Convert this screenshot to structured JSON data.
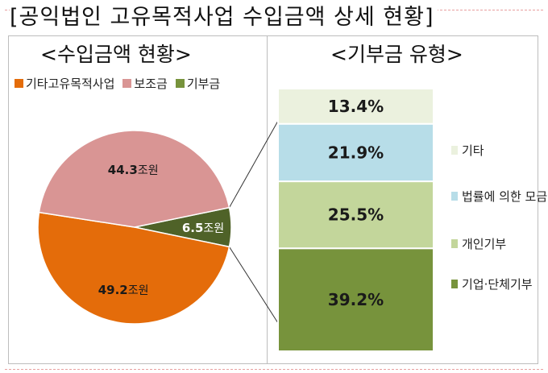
{
  "title": "[공익법인 고유목적사업 수입금액 상세 현황]",
  "chart_data": [
    {
      "type": "pie",
      "title": "<수입금액 현황>",
      "unit": "조원",
      "slices": [
        {
          "name": "기타고유목적사업",
          "value": 49.2,
          "label": "49.2",
          "color": "#e46c0a"
        },
        {
          "name": "보조금",
          "value": 44.3,
          "label": "44.3",
          "color": "#d99594"
        },
        {
          "name": "기부금",
          "value": 6.5,
          "label": "6.5",
          "color": "#4f6228"
        }
      ],
      "legend": [
        {
          "name": "기타고유목적사업",
          "color": "#e46c0a"
        },
        {
          "name": "보조금",
          "color": "#d99594"
        },
        {
          "name": "기부금",
          "color": "#77933c"
        }
      ],
      "legend_position": "top"
    },
    {
      "type": "bar",
      "stacked": true,
      "title": "<기부금 유형>",
      "unit": "%",
      "series": [
        {
          "name": "기업·단체기부",
          "value": 39.2,
          "label": "39.2%",
          "color": "#77933c"
        },
        {
          "name": "개인기부",
          "value": 25.5,
          "label": "25.5%",
          "color": "#c3d69b"
        },
        {
          "name": "법률에 의한 모금",
          "value": 21.9,
          "label": "21.9%",
          "color": "#b7dde8"
        },
        {
          "name": "기타",
          "value": 13.4,
          "label": "13.4%",
          "color": "#ebf1de"
        }
      ],
      "legend_position": "right"
    }
  ]
}
